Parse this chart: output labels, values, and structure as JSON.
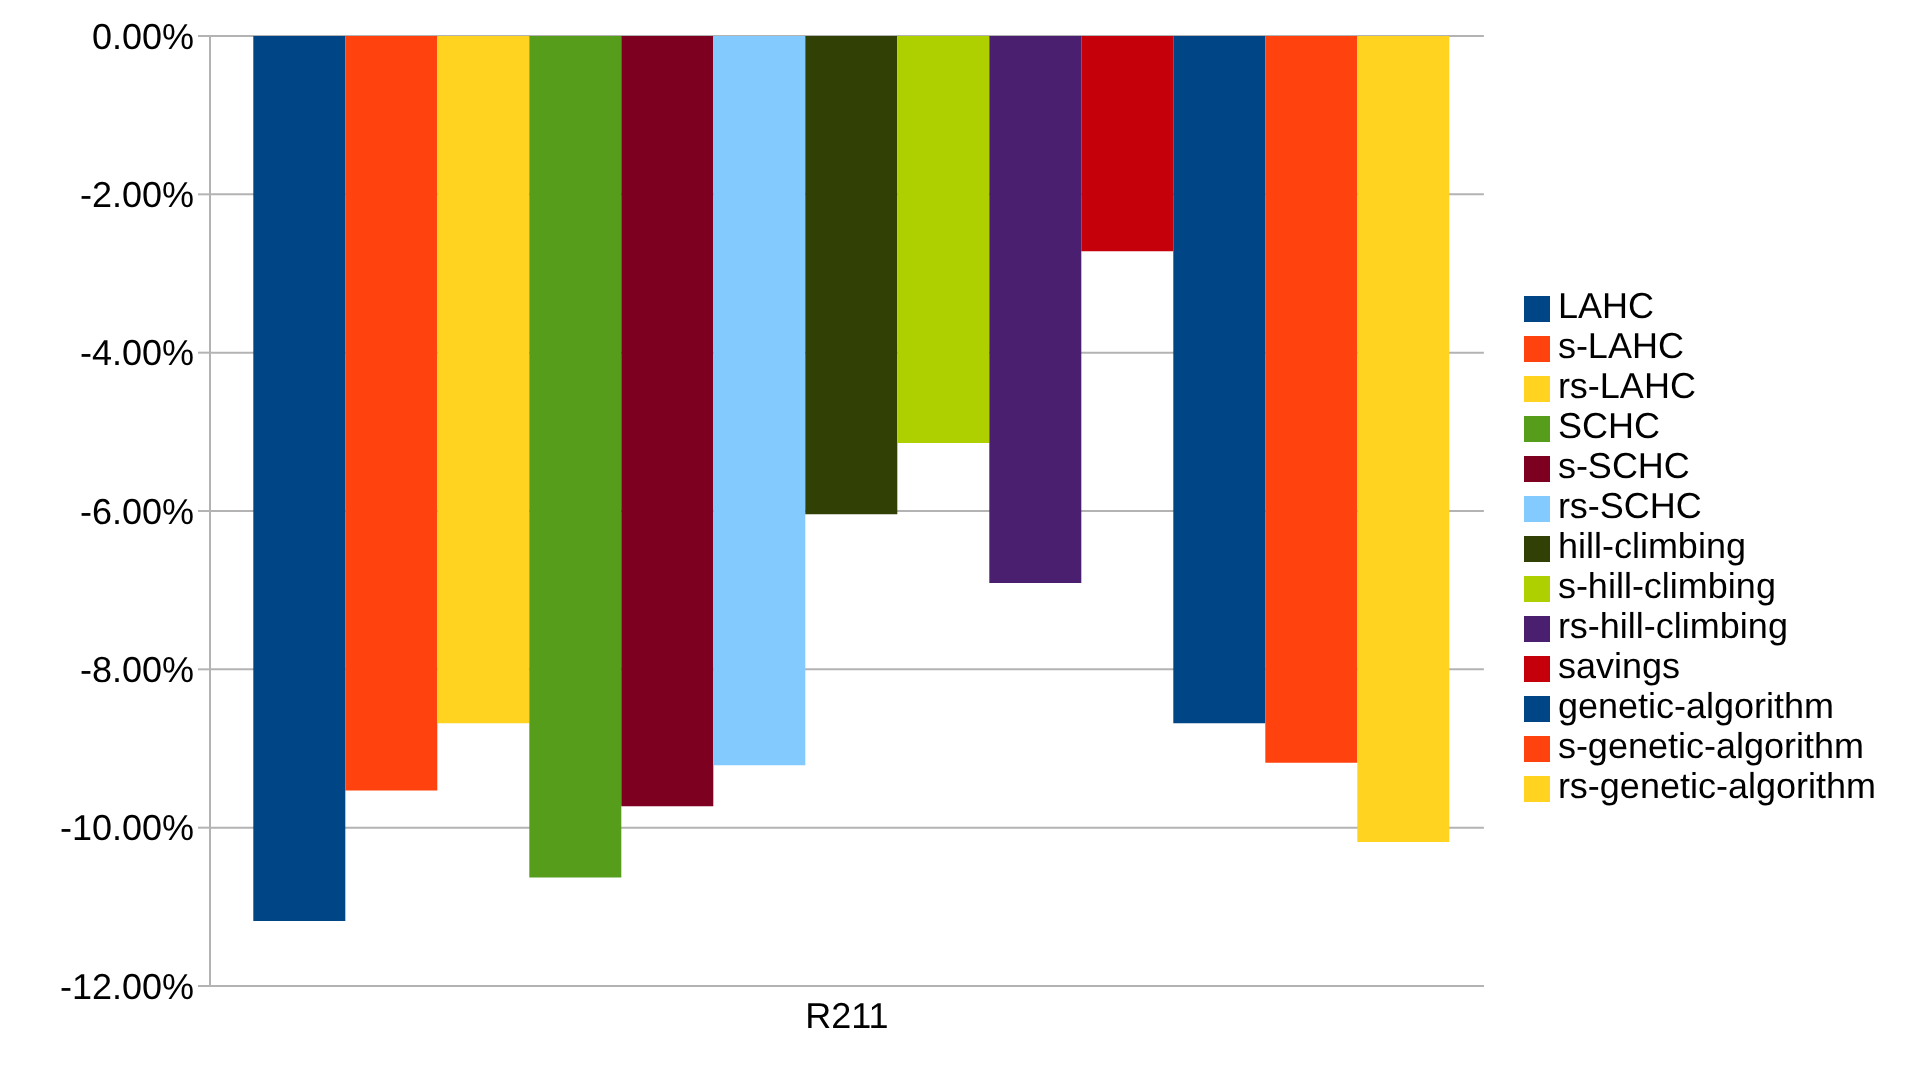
{
  "chart_data": {
    "type": "bar",
    "categories": [
      "R211"
    ],
    "series": [
      {
        "name": "LAHC",
        "color": "#004586",
        "values": [
          -11.18
        ]
      },
      {
        "name": "s-LAHC",
        "color": "#ff420e",
        "values": [
          -9.53
        ]
      },
      {
        "name": "rs-LAHC",
        "color": "#ffd320",
        "values": [
          -8.68
        ]
      },
      {
        "name": "SCHC",
        "color": "#579d1c",
        "values": [
          -10.63
        ]
      },
      {
        "name": "s-SCHC",
        "color": "#7e0021",
        "values": [
          -9.73
        ]
      },
      {
        "name": "rs-SCHC",
        "color": "#83caff",
        "values": [
          -9.21
        ]
      },
      {
        "name": "hill-climbing",
        "color": "#314004",
        "values": [
          -6.04
        ]
      },
      {
        "name": "s-hill-climbing",
        "color": "#aecf00",
        "values": [
          -5.14
        ]
      },
      {
        "name": "rs-hill-climbing",
        "color": "#4b1f6f",
        "values": [
          -6.91
        ]
      },
      {
        "name": "savings",
        "color": "#c5000b",
        "values": [
          -2.72
        ]
      },
      {
        "name": "genetic-algorithm",
        "color": "#004586",
        "values": [
          -8.68
        ]
      },
      {
        "name": "s-genetic-algorithm",
        "color": "#ff420e",
        "values": [
          -9.18
        ]
      },
      {
        "name": "rs-genetic-algorithm",
        "color": "#ffd320",
        "values": [
          -10.18
        ]
      }
    ],
    "ylim": [
      -12,
      0
    ],
    "yticks": [
      {
        "value": -12,
        "label": "-12.00%"
      },
      {
        "value": -10,
        "label": "-10.00%"
      },
      {
        "value": -8,
        "label": "-8.00%"
      },
      {
        "value": -6,
        "label": "-6.00%"
      },
      {
        "value": -4,
        "label": "-4.00%"
      },
      {
        "value": -2,
        "label": "-2.00%"
      },
      {
        "value": 0,
        "label": "0.00%"
      }
    ],
    "grid": "y",
    "legend": "right"
  }
}
